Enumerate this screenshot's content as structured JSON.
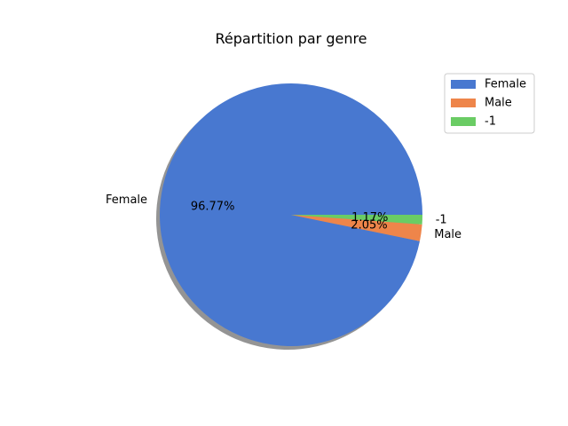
{
  "chart_data": {
    "type": "pie",
    "title": "Répartition par genre",
    "slices": [
      {
        "label": "Female",
        "value": 96.77,
        "pct_label": "96.77%",
        "color": "#4878d0"
      },
      {
        "label": "Male",
        "value": 2.05,
        "pct_label": "2.05%",
        "color": "#ee854a"
      },
      {
        "label": "-1",
        "value": 1.17,
        "pct_label": "1.17%",
        "color": "#6acc64"
      }
    ],
    "start_angle_deg": 0,
    "direction": "counterclockwise",
    "shadow": true,
    "legend": {
      "placement": "top-right",
      "entries": [
        "Female",
        "Male",
        "-1"
      ]
    }
  }
}
